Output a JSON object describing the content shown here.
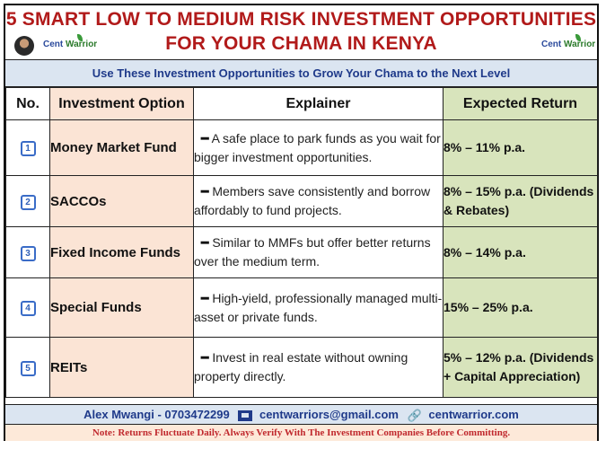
{
  "header": {
    "title_line1": "5 SMART LOW TO MEDIUM RISK INVESTMENT OPPORTUNITIES",
    "title_line2": "FOR YOUR CHAMA IN KENYA",
    "logo_left": {
      "a": "Cent ",
      "b": "Warrior"
    },
    "logo_right": {
      "a": "Cent ",
      "b": "Warrior"
    }
  },
  "subtitle": "Use These Investment Opportunities to Grow Your Chama to the Next Level",
  "table": {
    "headers": [
      "No.",
      "Investment Option",
      "Explainer",
      "Expected Return"
    ],
    "rows": [
      {
        "no": "1",
        "option": "Money Market Fund",
        "explainer": "A safe place to park funds as you wait for bigger investment opportunities.",
        "return": "8% – 11% p.a."
      },
      {
        "no": "2",
        "option": "SACCOs",
        "explainer": "Members save consistently and borrow affordably to fund projects.",
        "return": "8% – 15% p.a. (Dividends & Rebates)"
      },
      {
        "no": "3",
        "option": "Fixed Income Funds",
        "explainer": "Similar to MMFs but offer better returns over the medium term.",
        "return": "8% – 14% p.a."
      },
      {
        "no": "4",
        "option": "Special Funds",
        "explainer": "High-yield, professionally managed multi-asset or private funds.",
        "return": "15% – 25% p.a."
      },
      {
        "no": "5",
        "option": "REITs",
        "explainer": "Invest in real estate without owning property directly.",
        "return": "5% – 12% p.a. (Dividends + Capital Appreciation)"
      }
    ]
  },
  "footer": {
    "contact_name": "Alex Mwangi - 0703472299",
    "email": "centwarriors@gmail.com",
    "website": "centwarrior.com",
    "note": "Note: Returns Fluctuate Daily. Always Verify With The Investment Companies Before Committing."
  },
  "icons": {
    "email": "mail-icon",
    "website": "link-icon",
    "row_number": "number-box-icon"
  },
  "colors": {
    "title": "#b11a1a",
    "subtitle_bg": "#dbe5f1",
    "option_bg": "#fbe4d5",
    "return_bg": "#d8e4bc",
    "note": "#c0282d"
  }
}
